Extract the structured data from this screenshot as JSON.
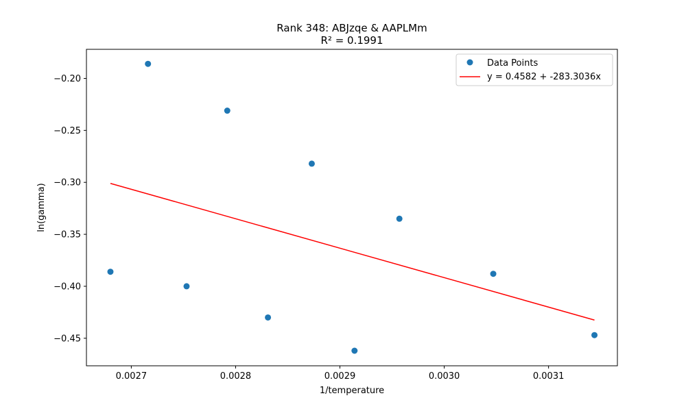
{
  "chart_data": {
    "type": "scatter",
    "title": "Rank 348: ABJzqe & AAPLMm",
    "subtitle": "R² = 0.1991",
    "xlabel": "1/temperature",
    "ylabel": "ln(gamma)",
    "xlim": [
      0.002657,
      0.003166
    ],
    "ylim": [
      -0.4765,
      -0.172
    ],
    "x_ticks": [
      0.0027,
      0.0028,
      0.0029,
      0.003,
      0.0031
    ],
    "x_tick_labels": [
      "0.0027",
      "0.0028",
      "0.0029",
      "0.0030",
      "0.0031"
    ],
    "y_ticks": [
      -0.45,
      -0.4,
      -0.35,
      -0.3,
      -0.25,
      -0.2
    ],
    "y_tick_labels": [
      "−0.45",
      "−0.40",
      "−0.35",
      "−0.30",
      "−0.25",
      "−0.20"
    ],
    "grid": false,
    "legend_position": "top-right",
    "series": [
      {
        "name": "Data Points",
        "kind": "scatter",
        "color": "#1f77b4",
        "x": [
          0.00268,
          0.002716,
          0.002753,
          0.002792,
          0.002831,
          0.002873,
          0.002914,
          0.002957,
          0.003047,
          0.003144
        ],
        "y": [
          -0.386,
          -0.186,
          -0.4,
          -0.231,
          -0.43,
          -0.282,
          -0.462,
          -0.335,
          -0.388,
          -0.447
        ]
      },
      {
        "name": "y = 0.4582 + -283.3036x",
        "kind": "line",
        "color": "#ff0000",
        "x": [
          0.00268,
          0.003144
        ],
        "y": [
          -0.301,
          -0.4325
        ]
      }
    ]
  }
}
